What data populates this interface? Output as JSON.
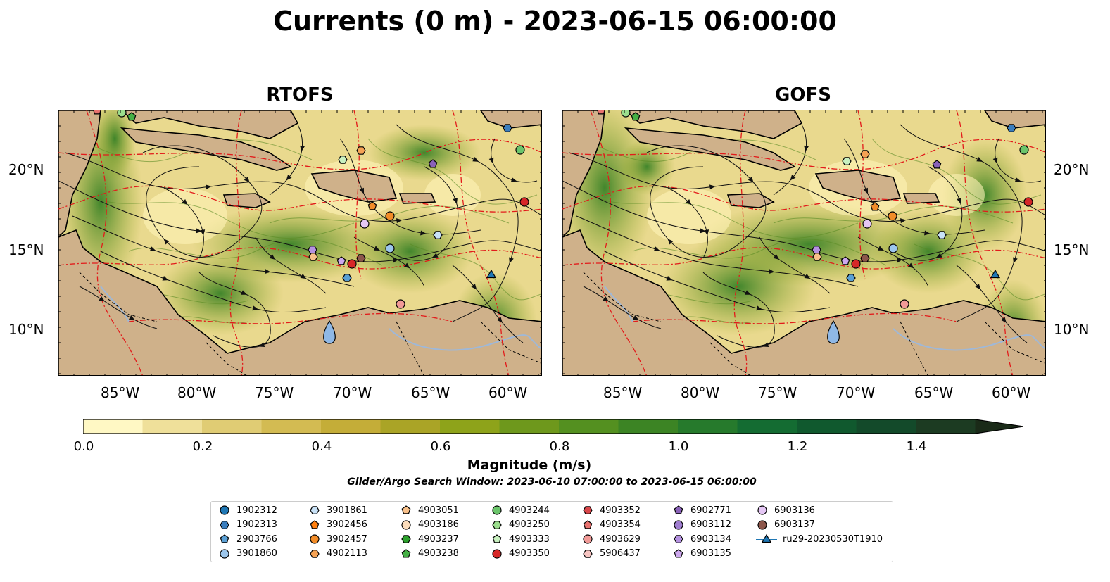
{
  "title": "Currents (0 m) - 2023-06-15 06:00:00",
  "panels": [
    {
      "title": "RTOFS"
    },
    {
      "title": "GOFS"
    }
  ],
  "lon_ticks": [
    "85°W",
    "80°W",
    "75°W",
    "70°W",
    "65°W",
    "60°W"
  ],
  "lat_ticks": [
    "20°N",
    "15°N",
    "10°N"
  ],
  "colorbar": {
    "label": "Magnitude (m/s)",
    "ticks": [
      "0.0",
      "0.2",
      "0.4",
      "0.6",
      "0.8",
      "1.0",
      "1.2",
      "1.4"
    ],
    "range": [
      0.0,
      1.5
    ],
    "colors": [
      "#fff8c4",
      "#efe09a",
      "#e0cc74",
      "#d3bb52",
      "#c4ad38",
      "#aaa426",
      "#8ea31a",
      "#6e981c",
      "#549020",
      "#3c8424",
      "#267a2c",
      "#146c32",
      "#10592e",
      "#134a2a",
      "#1c3b22",
      "#1a2a18"
    ]
  },
  "search_window": "Glider/Argo Search Window: 2023-06-10 07:00:00 to 2023-06-15 06:00:00",
  "legend": {
    "items": [
      {
        "label": "1902312",
        "marker": "circle",
        "color": "#1f77b4"
      },
      {
        "label": "1902313",
        "marker": "hexagon",
        "color": "#3a7dbd"
      },
      {
        "label": "2903766",
        "marker": "pentagon",
        "color": "#5a9fd4"
      },
      {
        "label": "3901860",
        "marker": "circle",
        "color": "#9cc6ec"
      },
      {
        "label": "3901861",
        "marker": "hexagon",
        "color": "#c9e2f7"
      },
      {
        "label": "3902456",
        "marker": "pentagon",
        "color": "#ff7f0e"
      },
      {
        "label": "3902457",
        "marker": "circle",
        "color": "#f28c28"
      },
      {
        "label": "4902113",
        "marker": "hexagon",
        "color": "#f5a254"
      },
      {
        "label": "4903051",
        "marker": "pentagon",
        "color": "#f8c08a"
      },
      {
        "label": "4903186",
        "marker": "circle",
        "color": "#fbdcbb"
      },
      {
        "label": "4903237",
        "marker": "hexagon",
        "color": "#2ca02c"
      },
      {
        "label": "4903238",
        "marker": "pentagon",
        "color": "#45b045"
      },
      {
        "label": "4903244",
        "marker": "circle",
        "color": "#6bc56b"
      },
      {
        "label": "4903250",
        "marker": "hexagon",
        "color": "#9bde8d"
      },
      {
        "label": "4903333",
        "marker": "pentagon",
        "color": "#c8f0c0"
      },
      {
        "label": "4903350",
        "marker": "circle",
        "color": "#d62728"
      },
      {
        "label": "4903352",
        "marker": "hexagon",
        "color": "#d9464a"
      },
      {
        "label": "4903354",
        "marker": "pentagon",
        "color": "#e8726f"
      },
      {
        "label": "4903629",
        "marker": "circle",
        "color": "#f19a97"
      },
      {
        "label": "5906437",
        "marker": "hexagon",
        "color": "#f7c5c2"
      },
      {
        "label": "6902771",
        "marker": "pentagon",
        "color": "#8a62b8"
      },
      {
        "label": "6903112",
        "marker": "circle",
        "color": "#a07ed0"
      },
      {
        "label": "6903134",
        "marker": "hexagon",
        "color": "#b592e0"
      },
      {
        "label": "6903135",
        "marker": "pentagon",
        "color": "#cda8ee"
      },
      {
        "label": "6903136",
        "marker": "circle",
        "color": "#e5c7f5"
      },
      {
        "label": "6903137",
        "marker": "circle",
        "color": "#8c564b"
      },
      {
        "label": "ru29-20230530T1910",
        "marker": "triangle-line",
        "color": "#1f77b4"
      }
    ]
  }
}
